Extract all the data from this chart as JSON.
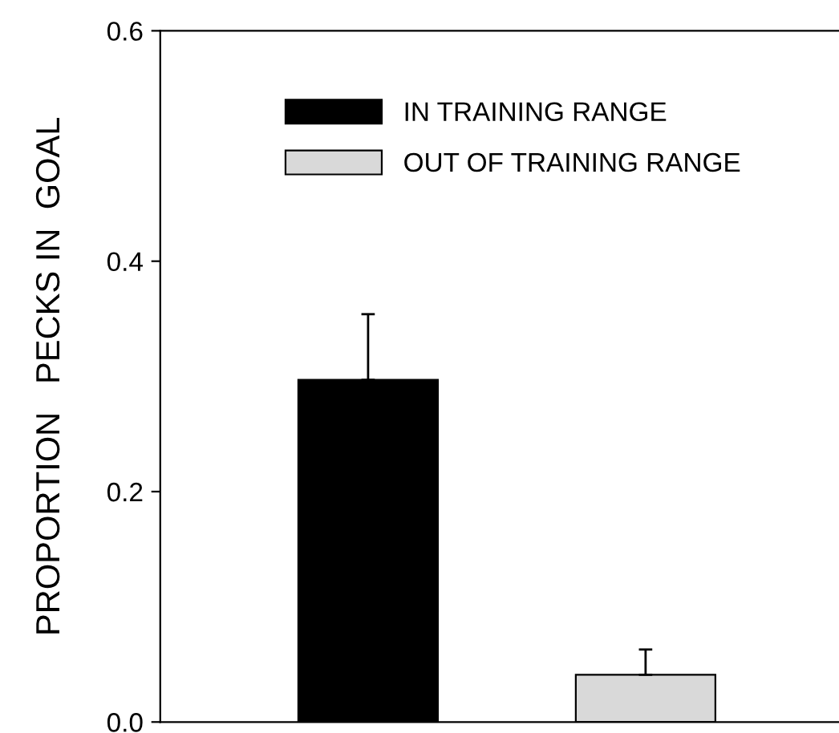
{
  "chart_data": {
    "type": "bar",
    "ylabel": "PROPORTION   PECKS IN  GOAL",
    "categories": [
      null,
      null
    ],
    "series": [
      {
        "name": "IN TRAINING RANGE",
        "color": "#000000",
        "values": [
          0.297,
          null
        ],
        "errors": [
          [
            0.297,
            0.354
          ],
          null
        ]
      },
      {
        "name": "OUT OF TRAINING RANGE",
        "color": "#d9d9d9",
        "values": [
          null,
          0.041
        ],
        "errors": [
          null,
          [
            0.041,
            0.063
          ]
        ]
      }
    ],
    "ylim": [
      0,
      0.6
    ],
    "yticks": [
      {
        "value": 0,
        "label": "0.0"
      },
      {
        "value": 0.2,
        "label": "0.2"
      },
      {
        "value": 0.4,
        "label": "0.4"
      },
      {
        "value": 0.6,
        "label": "0.6"
      }
    ],
    "legend": "top",
    "grid": false,
    "tick_labels": "y"
  }
}
